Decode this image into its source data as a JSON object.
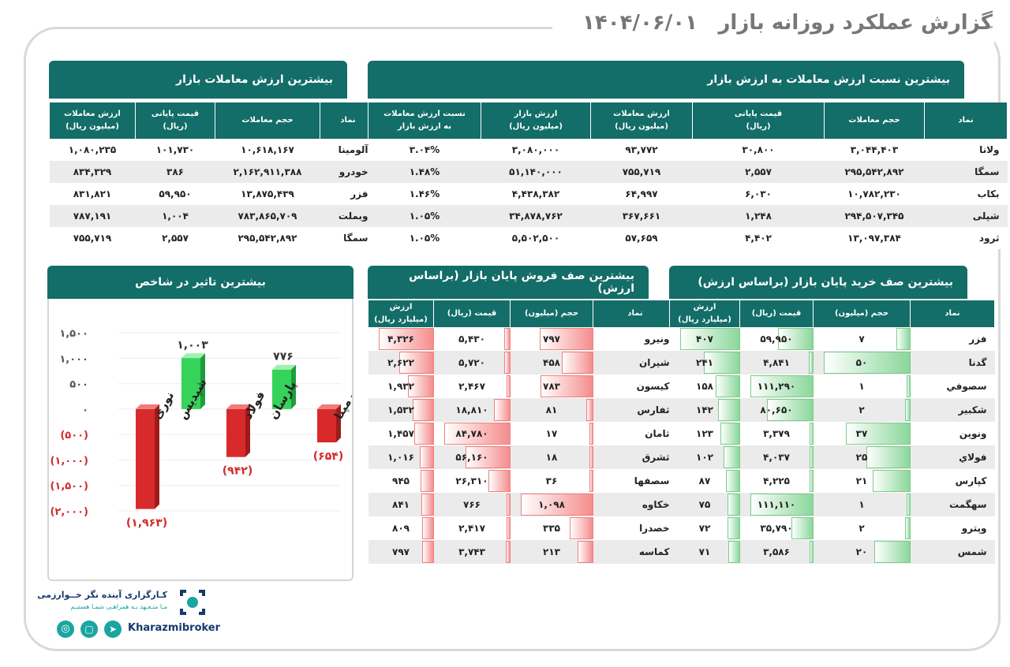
{
  "header": {
    "title": "گزارش عملکرد روزانه بازار",
    "date": "۱۴۰۴/۰۶/۰۱"
  },
  "colors": {
    "teal": "#136d68",
    "red": "#d22a2a",
    "green": "#2ecc53",
    "grey": "#777777"
  },
  "top_value": {
    "title": "بیشترین ارزش معاملات بازار",
    "headers": [
      "نماد",
      "حجم معاملات",
      "قیمت پایانی\n(ریال)",
      "ارزش معاملات\n(میلیون ریال)"
    ],
    "rows": [
      [
        "آلومینا",
        "۱۰,۶۱۸,۱۶۷",
        "۱۰۱,۷۳۰",
        "۱,۰۸۰,۲۳۵"
      ],
      [
        "خودرو",
        "۲,۱۶۲,۹۱۱,۳۸۸",
        "۳۸۶",
        "۸۳۴,۳۲۹"
      ],
      [
        "فزر",
        "۱۳,۸۷۵,۴۳۹",
        "۵۹,۹۵۰",
        "۸۳۱,۸۲۱"
      ],
      [
        "وبملت",
        "۷۸۳,۸۶۵,۷۰۹",
        "۱,۰۰۴",
        "۷۸۷,۱۹۱"
      ],
      [
        "سمگا",
        "۲۹۵,۵۴۲,۸۹۲",
        "۲,۵۵۷",
        "۷۵۵,۷۱۹"
      ]
    ]
  },
  "top_ratio": {
    "title": "بیشترین نسبت ارزش معاملات به ارزش بازار",
    "headers": [
      "نماد",
      "حجم معاملات",
      "قیمت پایانی\n(ریال)",
      "ارزش معاملات\n(میلیون ریال)",
      "ارزش بازار\n(میلیون ریال)",
      "نسبت ارزش معاملات\nبه ارزش بازار"
    ],
    "rows": [
      [
        "ولانا",
        "۳,۰۴۴,۴۰۳",
        "۳۰,۸۰۰",
        "۹۳,۷۷۲",
        "۳,۰۸۰,۰۰۰",
        "۳.۰۴%"
      ],
      [
        "سمگا",
        "۲۹۵,۵۴۲,۸۹۲",
        "۲,۵۵۷",
        "۷۵۵,۷۱۹",
        "۵۱,۱۴۰,۰۰۰",
        "۱.۴۸%"
      ],
      [
        "بکاب",
        "۱۰,۷۸۲,۲۳۰",
        "۶,۰۳۰",
        "۶۴,۹۹۷",
        "۴,۴۳۸,۳۸۲",
        "۱.۴۶%"
      ],
      [
        "شپلی",
        "۲۹۴,۵۰۷,۳۴۵",
        "۱,۲۴۸",
        "۳۶۷,۶۶۱",
        "۳۴,۸۷۸,۷۶۲",
        "۱.۰۵%"
      ],
      [
        "ثرود",
        "۱۳,۰۹۷,۳۸۴",
        "۴,۴۰۲",
        "۵۷,۶۵۹",
        "۵,۵۰۲,۵۰۰",
        "۱.۰۵%"
      ]
    ]
  },
  "impact": {
    "title": "بیشترین تاثیر در شاخص",
    "chart_data": {
      "type": "bar",
      "title": "بیشترین تاثیر در شاخص",
      "categories": [
        "نوری",
        "شپدیس",
        "فولاد",
        "پارسان",
        "رمپنا"
      ],
      "values": [
        -1963,
        1003,
        -942,
        776,
        -654
      ],
      "value_labels": [
        "(۱,۹۶۳)",
        "۱,۰۰۳",
        "(۹۴۲)",
        "۷۷۶",
        "(۶۵۴)"
      ],
      "ylim": [
        -2000,
        1500
      ],
      "ticks": [
        1500,
        1000,
        500,
        0,
        -500,
        -1000,
        -1500,
        -2000
      ],
      "tick_labels": [
        "۱,۵۰۰",
        "۱,۰۰۰",
        "۵۰۰",
        "۰",
        "(۵۰۰)",
        "(۱,۰۰۰)",
        "(۱,۵۰۰)",
        "(۲,۰۰۰)"
      ]
    }
  },
  "sell_queue": {
    "title": "بیشترین صف فروش پایان بازار (براساس ارزش)",
    "headers": [
      "نماد",
      "حجم (میلیون)",
      "قیمت (ریال)",
      "ارزش\n(میلیارد ریال)"
    ],
    "rows": [
      [
        "ونیرو",
        "۷۹۷",
        "۵,۴۳۰",
        "۴,۳۲۶",
        797,
        5430,
        4326
      ],
      [
        "شیران",
        "۴۵۸",
        "۵,۷۲۰",
        "۲,۶۲۲",
        458,
        5720,
        2622
      ],
      [
        "کیسون",
        "۷۸۳",
        "۲,۴۶۷",
        "۱,۹۳۲",
        783,
        2467,
        1932
      ],
      [
        "ثفارس",
        "۸۱",
        "۱۸,۸۱۰",
        "۱,۵۳۲",
        81,
        18810,
        1532
      ],
      [
        "ثامان",
        "۱۷",
        "۸۴,۷۸۰",
        "۱,۴۵۷",
        17,
        84780,
        1457
      ],
      [
        "ثشرق",
        "۱۸",
        "۵۶,۱۶۰",
        "۱,۰۱۶",
        18,
        56160,
        1016
      ],
      [
        "سصفها",
        "۳۶",
        "۲۶,۳۱۰",
        "۹۴۵",
        36,
        26310,
        945
      ],
      [
        "خکاوه",
        "۱,۰۹۸",
        "۷۶۶",
        "۸۴۱",
        1098,
        766,
        841
      ],
      [
        "خصدرا",
        "۳۳۵",
        "۲,۴۱۷",
        "۸۰۹",
        335,
        2417,
        809
      ],
      [
        "کماسه",
        "۲۱۳",
        "۳,۷۴۳",
        "۷۹۷",
        213,
        3743,
        797
      ]
    ]
  },
  "buy_queue": {
    "title": "بیشترین صف خرید پایان بازار (براساس ارزش)",
    "headers": [
      "نماد",
      "حجم (میلیون)",
      "قیمت (ریال)",
      "ارزش\n(میلیارد ریال)"
    ],
    "rows": [
      [
        "فزر",
        "۷",
        "۵۹,۹۵۰",
        "۴۰۷",
        7,
        59950,
        407
      ],
      [
        "گدنا",
        "۵۰",
        "۴,۸۴۱",
        "۲۴۱",
        50,
        4841,
        241
      ],
      [
        "سصوفي",
        "۱",
        "۱۱۱,۲۹۰",
        "۱۵۸",
        1,
        111290,
        158
      ],
      [
        "شکبیر",
        "۲",
        "۸۰,۶۵۰",
        "۱۴۲",
        2,
        80650,
        142
      ],
      [
        "ونوین",
        "۳۷",
        "۳,۳۷۹",
        "۱۲۳",
        37,
        3379,
        123
      ],
      [
        "فولاي",
        "۲۵",
        "۴,۰۳۷",
        "۱۰۲",
        25,
        4037,
        102
      ],
      [
        "کپارس",
        "۲۱",
        "۴,۲۲۵",
        "۸۷",
        21,
        4225,
        87
      ],
      [
        "سهگمت",
        "۱",
        "۱۱۱,۱۱۰",
        "۷۵",
        1,
        111110,
        75
      ],
      [
        "وپترو",
        "۲",
        "۳۵,۷۹۰",
        "۷۲",
        2,
        35790,
        72
      ],
      [
        "شمس",
        "۲۰",
        "۳,۵۸۶",
        "۷۱",
        20,
        3586,
        71
      ]
    ]
  },
  "brand": {
    "name": "کـارگزاری آینده نگر خــوارزمی",
    "slogan": "مـا متـعـهد بـه همراهـی شمـا هستیـم",
    "site": "Kharazmibroker"
  }
}
